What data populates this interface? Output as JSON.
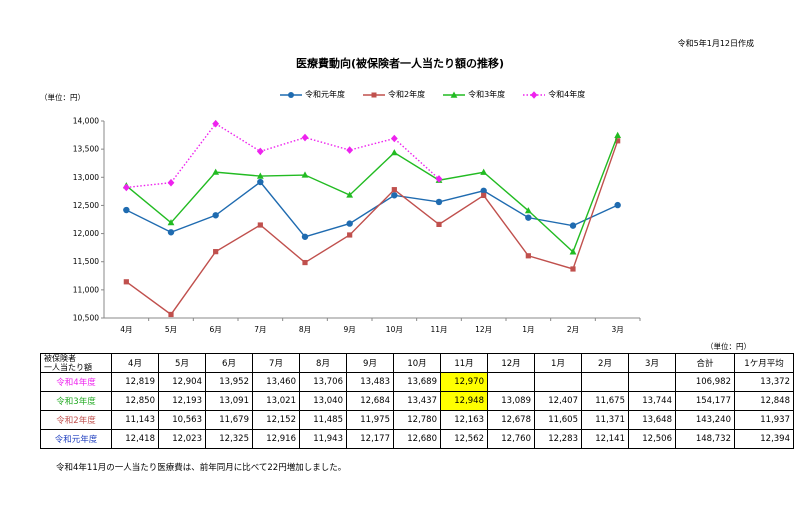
{
  "created_date": "令和5年1月12日作成",
  "chart_data": {
    "type": "line",
    "title": "医療費動向(被保険者一人当たり額の推移)",
    "unit_label": "（単位：円）",
    "categories": [
      "4月",
      "5月",
      "6月",
      "7月",
      "8月",
      "9月",
      "10月",
      "11月",
      "12月",
      "1月",
      "2月",
      "3月"
    ],
    "ylim": [
      10500,
      14000
    ],
    "yticks": [
      "10,500",
      "11,000",
      "11,500",
      "12,000",
      "12,500",
      "13,000",
      "13,500",
      "14,000"
    ],
    "ytick_values": [
      10500,
      11000,
      11500,
      12000,
      12500,
      13000,
      13500,
      14000
    ],
    "legend_position": "top",
    "grid": false,
    "series": [
      {
        "name": "令和元年度",
        "color": "#1f6bb0",
        "marker": "circle",
        "dash": "none",
        "values": [
          12418,
          12023,
          12325,
          12916,
          11943,
          12177,
          12680,
          12562,
          12760,
          12283,
          12141,
          12506
        ]
      },
      {
        "name": "令和2年度",
        "color": "#c0504d",
        "marker": "square",
        "dash": "none",
        "values": [
          11143,
          10563,
          11679,
          12152,
          11485,
          11975,
          12780,
          12163,
          12678,
          11605,
          11371,
          13648
        ]
      },
      {
        "name": "令和3年度",
        "color": "#22bb22",
        "marker": "triangle",
        "dash": "none",
        "values": [
          12850,
          12193,
          13091,
          13021,
          13040,
          12684,
          13437,
          12948,
          13089,
          12407,
          11675,
          13744
        ]
      },
      {
        "name": "令和4年度",
        "color": "#ee22ee",
        "marker": "diamond",
        "dash": "dot",
        "values": [
          12819,
          12904,
          13952,
          13460,
          13706,
          13483,
          13689,
          12970,
          null,
          null,
          null,
          null
        ]
      }
    ]
  },
  "table": {
    "unit_label": "（単位：円）",
    "corner_label_1": "被保険者",
    "corner_label_2": "一人当たり額",
    "headers": [
      "4月",
      "5月",
      "6月",
      "7月",
      "8月",
      "9月",
      "10月",
      "11月",
      "12月",
      "1月",
      "2月",
      "3月",
      "合計",
      "1ケ月平均"
    ],
    "rows": [
      {
        "label": "令和4年度",
        "color": "#ee22ee",
        "cells": [
          "12,819",
          "12,904",
          "13,952",
          "13,460",
          "13,706",
          "13,483",
          "13,689",
          "12,970",
          "",
          "",
          "",
          "",
          "106,982",
          "13,372"
        ],
        "highlight": [
          7
        ]
      },
      {
        "label": "令和3年度",
        "color": "#22aa22",
        "cells": [
          "12,850",
          "12,193",
          "13,091",
          "13,021",
          "13,040",
          "12,684",
          "13,437",
          "12,948",
          "13,089",
          "12,407",
          "11,675",
          "13,744",
          "154,177",
          "12,848"
        ],
        "highlight": [
          7
        ]
      },
      {
        "label": "令和2年度",
        "color": "#c0504d",
        "cells": [
          "11,143",
          "10,563",
          "11,679",
          "12,152",
          "11,485",
          "11,975",
          "12,780",
          "12,163",
          "12,678",
          "11,605",
          "11,371",
          "13,648",
          "143,240",
          "11,937"
        ],
        "highlight": []
      },
      {
        "label": "令和元年度",
        "color": "#1f3fbf",
        "cells": [
          "12,418",
          "12,023",
          "12,325",
          "12,916",
          "11,943",
          "12,177",
          "12,680",
          "12,562",
          "12,760",
          "12,283",
          "12,141",
          "12,506",
          "148,732",
          "12,394"
        ],
        "highlight": []
      }
    ]
  },
  "note": "令和4年11月の一人当たり医療費は、前年同月に比べて22円増加しました。"
}
